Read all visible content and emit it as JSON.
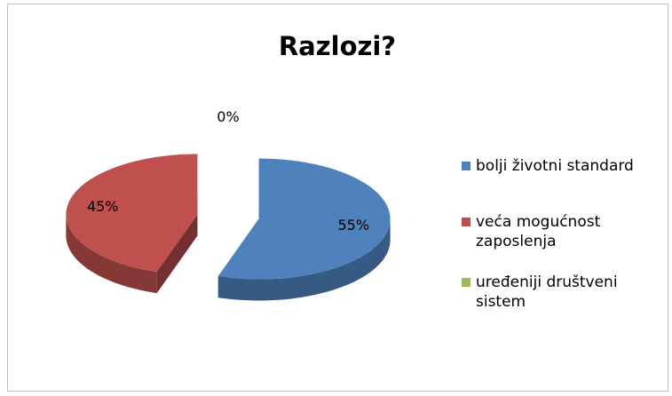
{
  "chart_data": {
    "type": "pie3d",
    "title": "Razlozi?",
    "categories": [
      "bolji životni standard",
      "veća mogućnost zaposlenja",
      "uređeniji društveni sistem"
    ],
    "values": [
      55,
      45,
      0
    ],
    "value_labels": [
      "55%",
      "45%",
      "0%"
    ],
    "colors": [
      "#4f81bd",
      "#c0504d",
      "#9bbb59"
    ],
    "legend": "right"
  }
}
